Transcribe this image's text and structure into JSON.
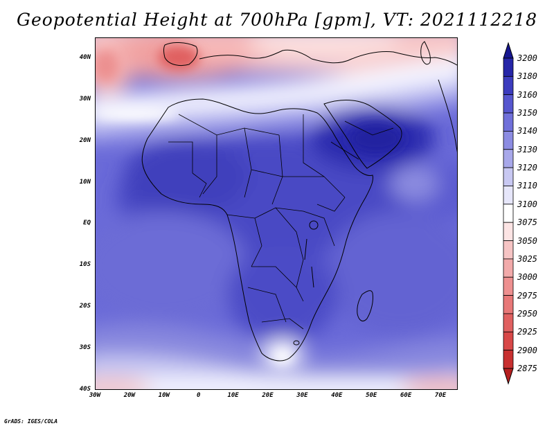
{
  "title": "Geopotential Height at 700hPa [gpm], VT: 2021112218",
  "footer": "GrADS: IGES/COLA",
  "map": {
    "region_lon": [
      -30,
      75
    ],
    "region_lat": [
      -40,
      45
    ],
    "y_ticks": [
      {
        "value": 40,
        "label": "40N"
      },
      {
        "value": 30,
        "label": "30N"
      },
      {
        "value": 20,
        "label": "20N"
      },
      {
        "value": 10,
        "label": "10N"
      },
      {
        "value": 0,
        "label": "EQ"
      },
      {
        "value": -10,
        "label": "10S"
      },
      {
        "value": -20,
        "label": "20S"
      },
      {
        "value": -30,
        "label": "30S"
      },
      {
        "value": -40,
        "label": "40S"
      }
    ],
    "x_ticks": [
      {
        "value": -30,
        "label": "30W"
      },
      {
        "value": -20,
        "label": "20W"
      },
      {
        "value": -10,
        "label": "10W"
      },
      {
        "value": 0,
        "label": "0"
      },
      {
        "value": 10,
        "label": "10E"
      },
      {
        "value": 20,
        "label": "20E"
      },
      {
        "value": 30,
        "label": "30E"
      },
      {
        "value": 40,
        "label": "40E"
      },
      {
        "value": 50,
        "label": "50E"
      },
      {
        "value": 60,
        "label": "60E"
      },
      {
        "value": 70,
        "label": "70E"
      }
    ]
  },
  "colorbar": {
    "levels": [
      "2875",
      "2900",
      "2925",
      "2950",
      "2975",
      "3000",
      "3025",
      "3050",
      "3075",
      "3100",
      "3110",
      "3120",
      "3130",
      "3140",
      "3150",
      "3160",
      "3180",
      "3200"
    ],
    "colors": [
      "#b51f1f",
      "#c83030",
      "#d84848",
      "#e06060",
      "#e87878",
      "#ee9090",
      "#f2aaaa",
      "#f6c4c4",
      "#fce4e4",
      "#ffffff",
      "#e6e6fa",
      "#c8c8f2",
      "#a8a8ea",
      "#8c8ce2",
      "#7070da",
      "#5656cf",
      "#3c3cbe",
      "#2626a8",
      "#161690"
    ]
  }
}
